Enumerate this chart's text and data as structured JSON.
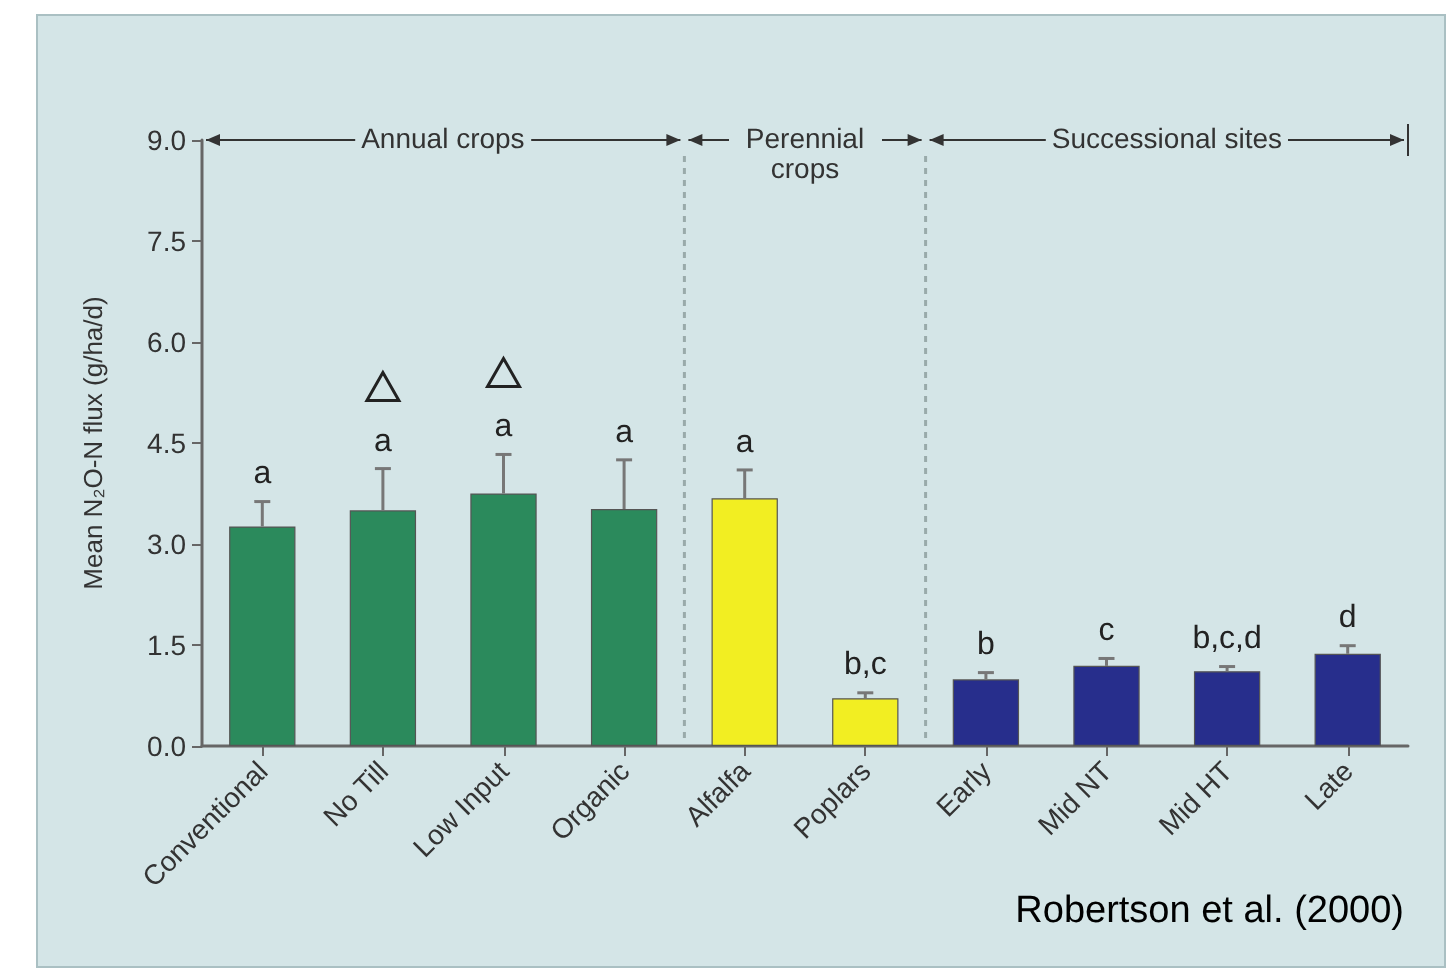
{
  "chart_data": {
    "type": "bar",
    "ylabel": "Mean N₂O-N flux (g/ha/d)",
    "categories": [
      "Conventional",
      "No Till",
      "Low Input",
      "Organic",
      "Alfalfa",
      "Poplars",
      "Early",
      "Mid NT",
      "Mid HT",
      "Late"
    ],
    "values": [
      3.26,
      3.5,
      3.75,
      3.52,
      3.68,
      0.71,
      0.99,
      1.19,
      1.11,
      1.37
    ],
    "errors": [
      0.37,
      0.62,
      0.58,
      0.73,
      0.42,
      0.08,
      0.1,
      0.11,
      0.07,
      0.12
    ],
    "colors": [
      "#2b8a5c",
      "#2b8a5c",
      "#2b8a5c",
      "#2b8a5c",
      "#f2ee22",
      "#f2ee22",
      "#272e8c",
      "#272e8c",
      "#272e8c",
      "#272e8c"
    ],
    "value_labels": [
      "a",
      "a",
      "a",
      "a",
      "a",
      "b,c",
      "b",
      "c",
      "b,c,d",
      "d"
    ],
    "ylim": [
      0,
      9
    ],
    "yticks": [
      {
        "value": 0,
        "label": "0.0"
      },
      {
        "value": 1.5,
        "label": "1.5"
      },
      {
        "value": 3,
        "label": "3.0"
      },
      {
        "value": 4.5,
        "label": "4.5"
      },
      {
        "value": 6,
        "label": "6.0"
      },
      {
        "value": 7.5,
        "label": "7.5"
      },
      {
        "value": 9,
        "label": "9.0"
      }
    ],
    "annotations": [
      "Annual crops",
      "Perennial crops",
      "Successional sites",
      "Robertson et al. (2000)"
    ]
  }
}
